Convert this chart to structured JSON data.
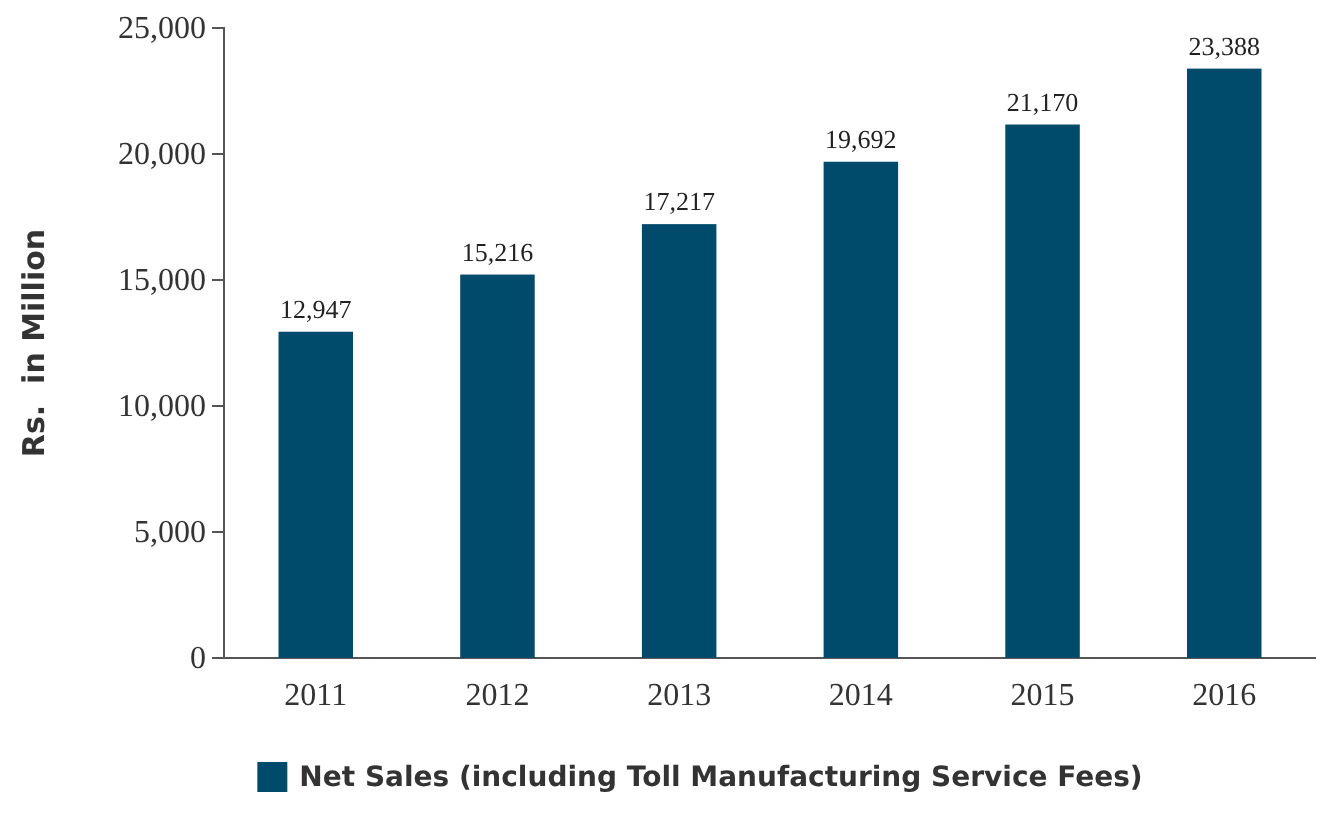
{
  "chart_data": {
    "type": "bar",
    "ylabel": "Rs.  in Million",
    "categories": [
      "2011",
      "2012",
      "2013",
      "2014",
      "2015",
      "2016"
    ],
    "series": [
      {
        "name": "Net Sales (including Toll Manufacturing Service Fees)",
        "color": "#004b6b",
        "values": [
          12947,
          15216,
          17217,
          19692,
          21170,
          23388
        ],
        "value_labels": [
          "12,947",
          "15,216",
          "17,217",
          "19,692",
          "21,170",
          "23,388"
        ]
      }
    ],
    "ylim": [
      0,
      25000
    ],
    "yticks": [
      {
        "value": 0,
        "label": "0"
      },
      {
        "value": 5000,
        "label": "5,000"
      },
      {
        "value": 10000,
        "label": "10,000"
      },
      {
        "value": 15000,
        "label": "15,000"
      },
      {
        "value": 20000,
        "label": "20,000"
      },
      {
        "value": 25000,
        "label": "25,000"
      }
    ],
    "legend": "bottom",
    "grid": false
  }
}
